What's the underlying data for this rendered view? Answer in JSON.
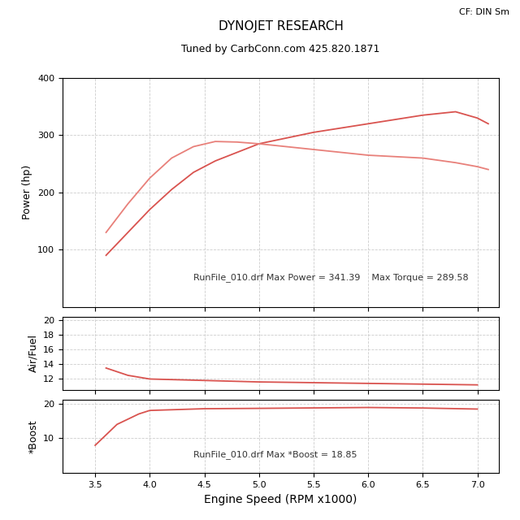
{
  "header": {
    "corner": "CF: DIN Sm"
  },
  "chart_data": [
    {
      "type": "line",
      "title": "DYNOJET RESEARCH",
      "subtitle": "Tuned by CarbConn.com 425.820.1871",
      "ylabel": "Power (hp)",
      "annotation": "RunFile_010.drf Max Power = 341.39    Max Torque = 289.58",
      "x": [
        3.6,
        3.8,
        4.0,
        4.2,
        4.4,
        4.6,
        4.8,
        5.0,
        5.5,
        6.0,
        6.5,
        6.8,
        7.0,
        7.1
      ],
      "series": [
        {
          "color": "#d9534f",
          "values": [
            90,
            130,
            170,
            205,
            235,
            255,
            270,
            285,
            305,
            320,
            335,
            341,
            330,
            320
          ]
        },
        {
          "color": "#e8807a",
          "values": [
            130,
            180,
            225,
            260,
            280,
            289,
            288,
            285,
            275,
            265,
            260,
            252,
            245,
            240
          ]
        }
      ],
      "xlim": [
        3.2,
        7.2
      ],
      "xticks": [
        3.5,
        4.0,
        4.5,
        5.0,
        5.5,
        6.0,
        6.5,
        7.0
      ],
      "ylim": [
        0,
        400
      ],
      "yticks": [
        100,
        200,
        300,
        400
      ],
      "grid": true,
      "tick_labels": "y"
    },
    {
      "type": "line",
      "ylabel": "Air/Fuel",
      "x": [
        3.6,
        3.8,
        4.0,
        4.5,
        5.0,
        5.5,
        6.0,
        6.5,
        7.0
      ],
      "series": [
        {
          "color": "#d9534f",
          "values": [
            13.5,
            12.5,
            12.0,
            11.8,
            11.6,
            11.5,
            11.4,
            11.3,
            11.2
          ]
        }
      ],
      "xlim": [
        3.2,
        7.2
      ],
      "xticks": [
        3.5,
        4.0,
        4.5,
        5.0,
        5.5,
        6.0,
        6.5,
        7.0
      ],
      "ylim": [
        10.5,
        20.5
      ],
      "yticks": [
        12,
        14,
        16,
        18,
        20
      ],
      "grid": true,
      "tick_labels": "y"
    },
    {
      "type": "line",
      "ylabel": "*Boost",
      "xlabel": "Engine Speed (RPM x1000)",
      "annotation": "RunFile_010.drf Max *Boost = 18.85",
      "x": [
        3.5,
        3.7,
        3.9,
        4.0,
        4.5,
        5.0,
        6.0,
        6.5,
        7.0
      ],
      "series": [
        {
          "color": "#d9534f",
          "values": [
            8,
            14,
            17,
            18,
            18.5,
            18.6,
            18.85,
            18.7,
            18.4
          ]
        }
      ],
      "xlim": [
        3.2,
        7.2
      ],
      "xticks": [
        3.5,
        4.0,
        4.5,
        5.0,
        5.5,
        6.0,
        6.5,
        7.0
      ],
      "ylim": [
        0,
        21
      ],
      "yticks": [
        10,
        20
      ],
      "grid": true
    }
  ]
}
